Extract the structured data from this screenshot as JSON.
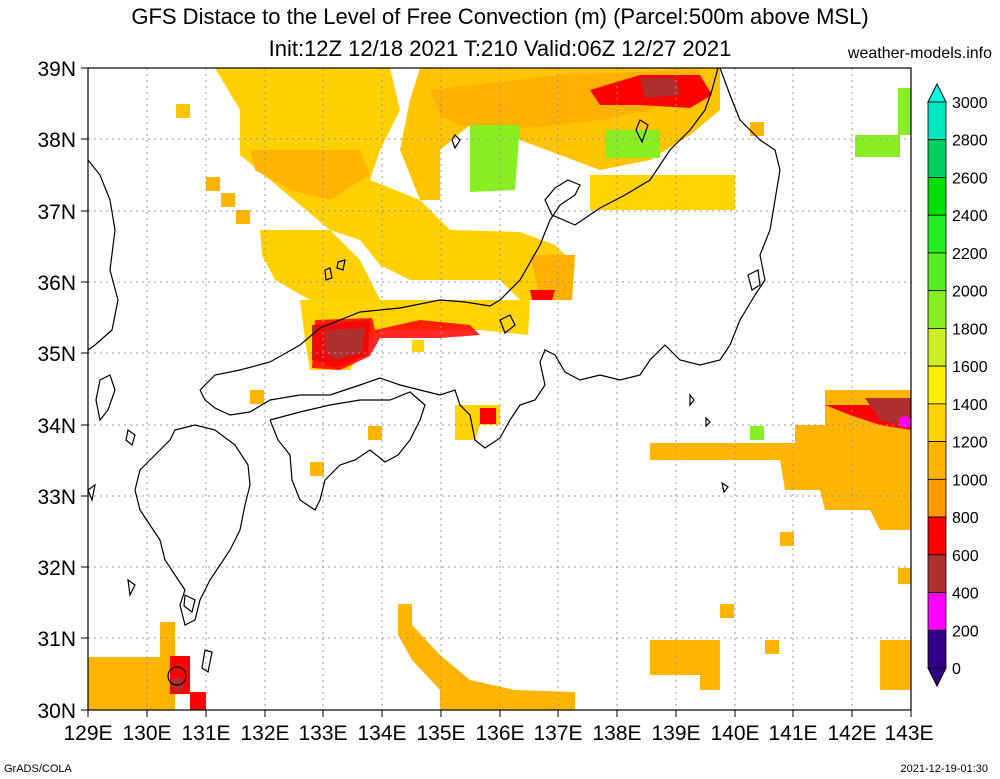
{
  "title": {
    "line1": "GFS Distace to the Level of Free Convection (m) (Parcel:500m above MSL)",
    "line2": "Init:12Z 12/18 2021 T:210 Valid:06Z 12/27 2021"
  },
  "site": "weather-models.info",
  "footer": {
    "left": "GrADS/COLA",
    "right": "2021-12-19-01:30"
  },
  "axes": {
    "x_labels": [
      "129E",
      "130E",
      "131E",
      "132E",
      "133E",
      "134E",
      "135E",
      "136E",
      "137E",
      "138E",
      "139E",
      "140E",
      "141E",
      "142E",
      "143E"
    ],
    "y_labels": [
      "39N",
      "38N",
      "37N",
      "36N",
      "35N",
      "34N",
      "33N",
      "32N",
      "31N",
      "30N"
    ]
  },
  "colorbar": {
    "labels": [
      "3000",
      "2800",
      "2600",
      "2400",
      "2200",
      "2000",
      "1800",
      "1600",
      "1400",
      "1200",
      "1000",
      "800",
      "600",
      "400",
      "200",
      "0"
    ],
    "colors": [
      "#00ffe0",
      "#00e6c0",
      "#00d060",
      "#00e000",
      "#22ee22",
      "#55ee22",
      "#88ee22",
      "#ccee22",
      "#ffee00",
      "#ffd400",
      "#ffb400",
      "#ff9900",
      "#ff0000",
      "#b03030",
      "#ff00ff",
      "#330088"
    ]
  }
}
